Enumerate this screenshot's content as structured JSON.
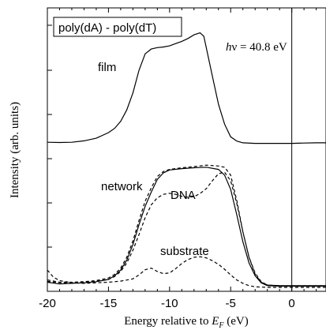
{
  "chart_data": {
    "type": "line",
    "title": "",
    "legend_box_text": "poly(dA) - poly(dT)",
    "annotation": {
      "h": "h",
      "nu_rest": "ν = 40.8 eV"
    },
    "xlabel": {
      "main": "Energy relative to ",
      "var": "E",
      "sub": "F",
      "unit": " (eV)"
    },
    "ylabel": "Intensity (arb. units)",
    "xlim": [
      -20,
      2.8
    ],
    "ylim": [
      0,
      1
    ],
    "x_ticks": [
      -20,
      -15,
      -10,
      -5,
      0
    ],
    "x_tick_labels": [
      "-20",
      "-15",
      "-10",
      "-5",
      "0"
    ],
    "grid": false,
    "vertical_line_x": 0,
    "series": [
      {
        "name": "film",
        "style": "solid",
        "points": [
          [
            -20,
            0.526
          ],
          [
            -19,
            0.525
          ],
          [
            -18,
            0.526
          ],
          [
            -17,
            0.531
          ],
          [
            -16,
            0.54
          ],
          [
            -15,
            0.56
          ],
          [
            -14.5,
            0.575
          ],
          [
            -14,
            0.6
          ],
          [
            -13.5,
            0.64
          ],
          [
            -13,
            0.7
          ],
          [
            -12.5,
            0.78
          ],
          [
            -12,
            0.838
          ],
          [
            -11.5,
            0.855
          ],
          [
            -11,
            0.86
          ],
          [
            -10.5,
            0.862
          ],
          [
            -10,
            0.866
          ],
          [
            -9.5,
            0.874
          ],
          [
            -9,
            0.882
          ],
          [
            -8.5,
            0.892
          ],
          [
            -8,
            0.905
          ],
          [
            -7.5,
            0.912
          ],
          [
            -7.2,
            0.9
          ],
          [
            -7,
            0.86
          ],
          [
            -6.5,
            0.76
          ],
          [
            -6,
            0.66
          ],
          [
            -5.5,
            0.59
          ],
          [
            -5,
            0.545
          ],
          [
            -4.5,
            0.53
          ],
          [
            -4,
            0.524
          ],
          [
            -3,
            0.522
          ],
          [
            -2,
            0.522
          ],
          [
            -1,
            0.522
          ],
          [
            0,
            0.522
          ],
          [
            1,
            0.523
          ],
          [
            2,
            0.524
          ],
          [
            2.8,
            0.524
          ]
        ]
      },
      {
        "name": "network",
        "style": "solid",
        "points": [
          [
            -20,
            0.032
          ],
          [
            -19,
            0.026
          ],
          [
            -18,
            0.028
          ],
          [
            -17,
            0.03
          ],
          [
            -16,
            0.034
          ],
          [
            -15,
            0.042
          ],
          [
            -14.5,
            0.055
          ],
          [
            -14,
            0.075
          ],
          [
            -13.5,
            0.11
          ],
          [
            -13,
            0.165
          ],
          [
            -12.5,
            0.235
          ],
          [
            -12,
            0.3
          ],
          [
            -11.5,
            0.35
          ],
          [
            -11,
            0.395
          ],
          [
            -10.5,
            0.418
          ],
          [
            -10,
            0.428
          ],
          [
            -9,
            0.433
          ],
          [
            -8,
            0.436
          ],
          [
            -7,
            0.438
          ],
          [
            -6,
            0.43
          ],
          [
            -5.5,
            0.41
          ],
          [
            -5,
            0.36
          ],
          [
            -4.5,
            0.27
          ],
          [
            -4,
            0.175
          ],
          [
            -3.5,
            0.1
          ],
          [
            -3,
            0.055
          ],
          [
            -2.5,
            0.03
          ],
          [
            -2,
            0.02
          ],
          [
            -1,
            0.018
          ],
          [
            0,
            0.018
          ],
          [
            1,
            0.018
          ],
          [
            2,
            0.018
          ],
          [
            2.8,
            0.018
          ]
        ]
      },
      {
        "name": "DNA",
        "style": "dashed",
        "points": [
          [
            -20,
            0.035
          ],
          [
            -19,
            0.03
          ],
          [
            -18,
            0.03
          ],
          [
            -17,
            0.032
          ],
          [
            -16,
            0.035
          ],
          [
            -15,
            0.042
          ],
          [
            -14.5,
            0.052
          ],
          [
            -14,
            0.07
          ],
          [
            -13.5,
            0.1
          ],
          [
            -13,
            0.145
          ],
          [
            -12.5,
            0.2
          ],
          [
            -12,
            0.26
          ],
          [
            -11.5,
            0.305
          ],
          [
            -11,
            0.33
          ],
          [
            -10.5,
            0.342
          ],
          [
            -10,
            0.346
          ],
          [
            -9.5,
            0.342
          ],
          [
            -9,
            0.335
          ],
          [
            -8.5,
            0.332
          ],
          [
            -8,
            0.334
          ],
          [
            -7.5,
            0.345
          ],
          [
            -7,
            0.362
          ],
          [
            -6.5,
            0.39
          ],
          [
            -6,
            0.415
          ],
          [
            -5.5,
            0.42
          ],
          [
            -5,
            0.39
          ],
          [
            -4.5,
            0.31
          ],
          [
            -4,
            0.21
          ],
          [
            -3.5,
            0.12
          ],
          [
            -3,
            0.06
          ],
          [
            -2.5,
            0.032
          ],
          [
            -2,
            0.022
          ],
          [
            -1,
            0.02
          ],
          [
            0,
            0.02
          ],
          [
            1,
            0.02
          ],
          [
            2,
            0.02
          ],
          [
            2.8,
            0.02
          ]
        ]
      },
      {
        "name": "network-dashed",
        "style": "dashed",
        "points": [
          [
            -20,
            0.04
          ],
          [
            -19,
            0.032
          ],
          [
            -18,
            0.032
          ],
          [
            -17,
            0.034
          ],
          [
            -16,
            0.038
          ],
          [
            -15,
            0.047
          ],
          [
            -14.5,
            0.06
          ],
          [
            -14,
            0.082
          ],
          [
            -13.5,
            0.12
          ],
          [
            -13,
            0.178
          ],
          [
            -12.5,
            0.25
          ],
          [
            -12,
            0.318
          ],
          [
            -11.5,
            0.365
          ],
          [
            -11,
            0.405
          ],
          [
            -10.5,
            0.423
          ],
          [
            -10,
            0.43
          ],
          [
            -9,
            0.436
          ],
          [
            -8,
            0.44
          ],
          [
            -7,
            0.445
          ],
          [
            -6,
            0.442
          ],
          [
            -5.5,
            0.438
          ],
          [
            -5,
            0.41
          ],
          [
            -4.5,
            0.32
          ],
          [
            -4,
            0.21
          ],
          [
            -3.5,
            0.12
          ],
          [
            -3,
            0.065
          ],
          [
            -2.5,
            0.034
          ],
          [
            -2,
            0.022
          ],
          [
            -1,
            0.02
          ],
          [
            0,
            0.02
          ],
          [
            1,
            0.02
          ],
          [
            2,
            0.02
          ],
          [
            2.8,
            0.02
          ]
        ]
      },
      {
        "name": "substrate",
        "style": "dashed",
        "points": [
          [
            -20,
            0.075
          ],
          [
            -19.5,
            0.05
          ],
          [
            -19,
            0.038
          ],
          [
            -18,
            0.03
          ],
          [
            -17,
            0.028
          ],
          [
            -16,
            0.03
          ],
          [
            -15,
            0.032
          ],
          [
            -14,
            0.036
          ],
          [
            -13,
            0.044
          ],
          [
            -12.5,
            0.058
          ],
          [
            -12,
            0.076
          ],
          [
            -11.5,
            0.082
          ],
          [
            -11,
            0.07
          ],
          [
            -10.5,
            0.062
          ],
          [
            -10,
            0.065
          ],
          [
            -9.5,
            0.08
          ],
          [
            -9,
            0.098
          ],
          [
            -8.5,
            0.112
          ],
          [
            -8,
            0.12
          ],
          [
            -7.5,
            0.122
          ],
          [
            -7,
            0.118
          ],
          [
            -6.5,
            0.108
          ],
          [
            -6,
            0.095
          ],
          [
            -5.5,
            0.078
          ],
          [
            -5,
            0.058
          ],
          [
            -4.5,
            0.04
          ],
          [
            -4,
            0.028
          ],
          [
            -3.5,
            0.02
          ],
          [
            -3,
            0.016
          ],
          [
            -2,
            0.014
          ],
          [
            -1,
            0.014
          ],
          [
            0,
            0.014
          ],
          [
            1,
            0.014
          ],
          [
            2,
            0.014
          ],
          [
            2.8,
            0.014
          ]
        ]
      }
    ],
    "curve_labels": [
      {
        "text": "film",
        "name": "film-label"
      },
      {
        "text": "network",
        "name": "network-label"
      },
      {
        "text": "DNA",
        "name": "dna-label"
      },
      {
        "text": "substrate",
        "name": "substrate-label"
      }
    ]
  }
}
